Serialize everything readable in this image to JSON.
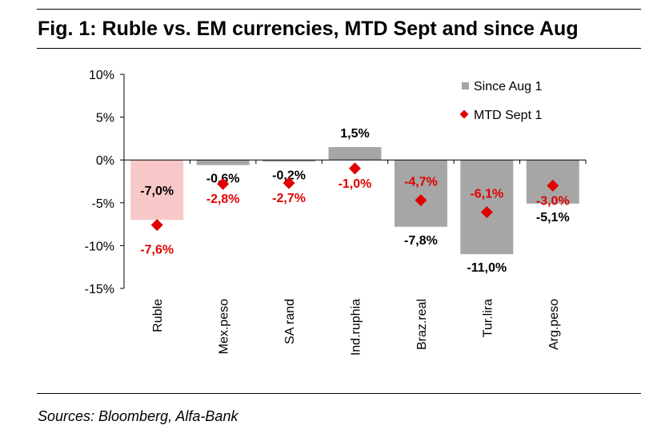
{
  "title": "Fig. 1: Ruble vs. EM currencies, MTD Sept and since Aug",
  "source": "Sources: Bloomberg, Alfa-Bank",
  "chart_data": {
    "type": "bar",
    "categories": [
      "Ruble",
      "Mex.peso",
      "SA rand",
      "Ind.ruphia",
      "Braz.real",
      "Tur.lira",
      "Arg.peso"
    ],
    "series": [
      {
        "name": "Since Aug 1",
        "kind": "bar",
        "values": [
          -7.0,
          -0.6,
          -0.2,
          1.5,
          -7.8,
          -11.0,
          -5.1
        ],
        "labels": [
          "-7,0%",
          "-0,6%",
          "-0,2%",
          "1,5%",
          "-7,8%",
          "-11,0%",
          "-5,1%"
        ],
        "color": "#a6a6a6",
        "highlight_color": "#f8c8c8"
      },
      {
        "name": "MTD Sept 1",
        "kind": "marker",
        "values": [
          -7.6,
          -2.8,
          -2.7,
          -1.0,
          -4.7,
          -6.1,
          -3.0
        ],
        "labels": [
          "-7,6%",
          "-2,8%",
          "-2,7%",
          "-1,0%",
          "-4,7%",
          "-6,1%",
          "-3,0%"
        ],
        "color": "#e00000"
      }
    ],
    "yticks": [
      "10%",
      "5%",
      "0%",
      "-5%",
      "-10%",
      "-15%"
    ],
    "ylim": [
      -15,
      10
    ],
    "legend": "top-right",
    "grid": false
  }
}
